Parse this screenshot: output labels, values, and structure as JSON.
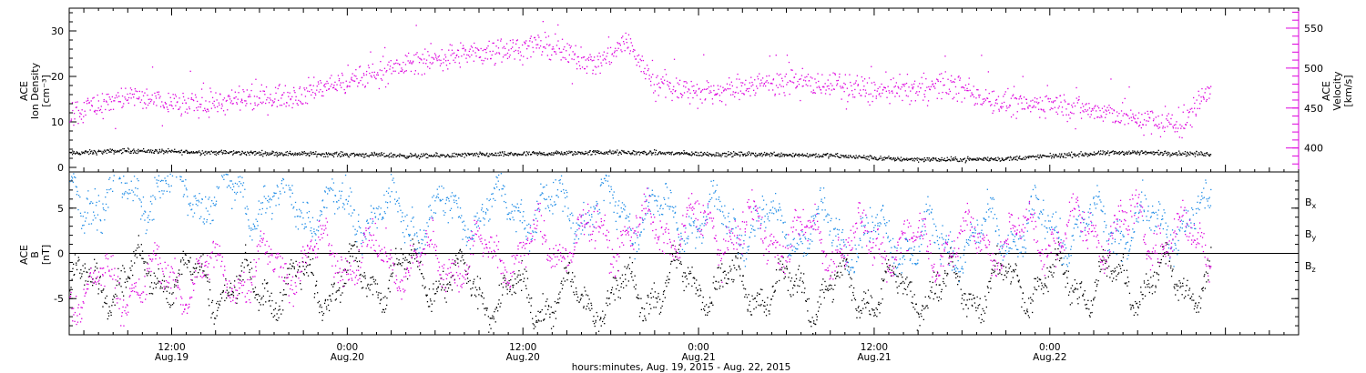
{
  "chart_data": [
    {
      "type": "scatter",
      "panel": "top",
      "left_axis": {
        "title_lines": [
          "ACE",
          "Ion Density",
          "[cm⁻³]"
        ],
        "ylim": [
          -1,
          35
        ],
        "ticks": [
          0,
          10,
          20,
          30
        ]
      },
      "right_axis": {
        "title_lines": [
          "ACE",
          "Velocity",
          "[km/s]"
        ],
        "ylim": [
          370,
          575
        ],
        "ticks": [
          400,
          450,
          500,
          550
        ]
      },
      "series": [
        {
          "name": "Ion Density",
          "axis": "left",
          "color": "#000000",
          "t_hours": [
            0,
            4,
            8,
            12,
            16,
            20,
            24,
            28,
            32,
            36,
            40,
            44,
            48,
            52,
            56,
            60,
            64,
            68,
            72,
            76,
            78
          ],
          "values": [
            3.2,
            3.8,
            3.5,
            3.3,
            3.1,
            2.9,
            2.6,
            2.9,
            3.1,
            3.4,
            3.3,
            3.0,
            3.0,
            2.7,
            2.0,
            1.8,
            2.0,
            2.8,
            3.4,
            3.2,
            3.0
          ]
        },
        {
          "name": "Velocity",
          "axis": "right",
          "color": "#dd00dd",
          "t_hours": [
            0,
            4,
            8,
            12,
            16,
            20,
            24,
            28,
            32,
            36,
            38,
            40,
            44,
            48,
            52,
            56,
            60,
            64,
            68,
            72,
            76,
            78
          ],
          "values": [
            445,
            465,
            455,
            460,
            470,
            490,
            510,
            520,
            530,
            505,
            535,
            480,
            470,
            485,
            480,
            470,
            480,
            455,
            455,
            440,
            428,
            480
          ]
        }
      ]
    },
    {
      "type": "scatter",
      "panel": "bottom",
      "left_axis": {
        "title_lines": [
          "ACE",
          "B",
          "[nT]"
        ],
        "ylim": [
          -9,
          9
        ],
        "ticks": [
          -5,
          0,
          5
        ]
      },
      "legend": [
        {
          "label": "B",
          "sub": "x",
          "color": "#000000"
        },
        {
          "label": "B",
          "sub": "y",
          "color": "#1e8ce6"
        },
        {
          "label": "B",
          "sub": "z",
          "color": "#dd00dd"
        }
      ],
      "series": [
        {
          "name": "Bx",
          "color": "#000000",
          "t_hours": [
            0,
            6,
            12,
            18,
            24,
            30,
            36,
            42,
            48,
            54,
            60,
            66,
            72,
            78
          ],
          "values": [
            -4,
            -2,
            -4,
            -3,
            -2,
            -5,
            -5,
            -3,
            -4,
            -4,
            -4,
            -3,
            -3,
            -3
          ]
        },
        {
          "name": "By",
          "color": "#1e8ce6",
          "t_hours": [
            0,
            6,
            12,
            18,
            24,
            30,
            36,
            42,
            48,
            54,
            60,
            66,
            72,
            78
          ],
          "values": [
            6,
            7,
            6,
            5,
            4,
            5,
            5,
            4,
            3,
            2,
            1,
            3,
            3,
            4
          ]
        },
        {
          "name": "Bz",
          "color": "#dd00dd",
          "t_hours": [
            0,
            6,
            12,
            18,
            24,
            30,
            36,
            42,
            48,
            54,
            60,
            66,
            72,
            78
          ],
          "values": [
            -4,
            -3,
            -2,
            0,
            -1,
            0,
            2,
            3,
            2,
            1,
            1,
            2,
            3,
            1
          ]
        }
      ]
    }
  ],
  "x_axis": {
    "xlim_hours": [
      0,
      84
    ],
    "ticks": [
      {
        "t_hours": 7,
        "time": "12:00",
        "date": "Aug.19"
      },
      {
        "t_hours": 19,
        "time": "0:00",
        "date": "Aug.20"
      },
      {
        "t_hours": 31,
        "time": "12:00",
        "date": "Aug.20"
      },
      {
        "t_hours": 43,
        "time": "0:00",
        "date": "Aug.21"
      },
      {
        "t_hours": 55,
        "time": "12:00",
        "date": "Aug.21"
      },
      {
        "t_hours": 67,
        "time": "0:00",
        "date": "Aug.22"
      }
    ],
    "label": "hours:minutes, Aug. 19, 2015 - Aug. 22, 2015"
  }
}
